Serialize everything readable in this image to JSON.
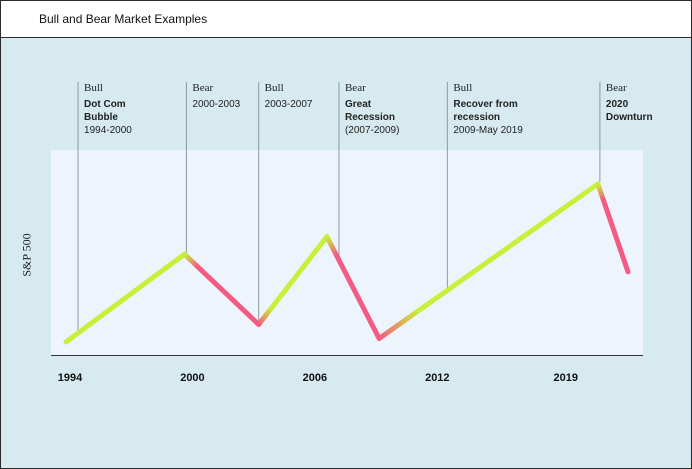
{
  "title": "Bull and Bear Market Examples",
  "chart_data": {
    "type": "line",
    "title": "",
    "xlabel": "",
    "ylabel": "S&P 500",
    "x_ticks": [
      "1994",
      "2000",
      "2006",
      "2012",
      "2019"
    ],
    "series": [
      {
        "x": [
          1994.0,
          1999.9,
          2003.6,
          2007.0,
          2009.6,
          2020.5,
          2022.0
        ],
        "values": [
          1,
          6,
          2,
          7,
          1.2,
          10,
          5
        ]
      }
    ],
    "colors": {
      "bull": "#c8f03a",
      "bear": "#f45a82"
    },
    "annotations": [
      {
        "phase": "Bull",
        "name": "Dot Com\nBubble",
        "years": "1994-2000",
        "x": 1994.6
      },
      {
        "phase": "Bear",
        "name": "",
        "years": "2000-2003",
        "x": 2000.0
      },
      {
        "phase": "Bull",
        "name": "",
        "years": "2003-2007",
        "x": 2003.6
      },
      {
        "phase": "Bear",
        "name": "Great\nRecession",
        "years": "(2007-2009)",
        "x": 2007.6
      },
      {
        "phase": "Bull",
        "name": "Recover from\nrecession",
        "years": "2009-May 2019",
        "x": 2013.0
      },
      {
        "phase": "Bear",
        "name": "2020\nDownturn",
        "years": "",
        "x": 2020.6
      }
    ]
  }
}
